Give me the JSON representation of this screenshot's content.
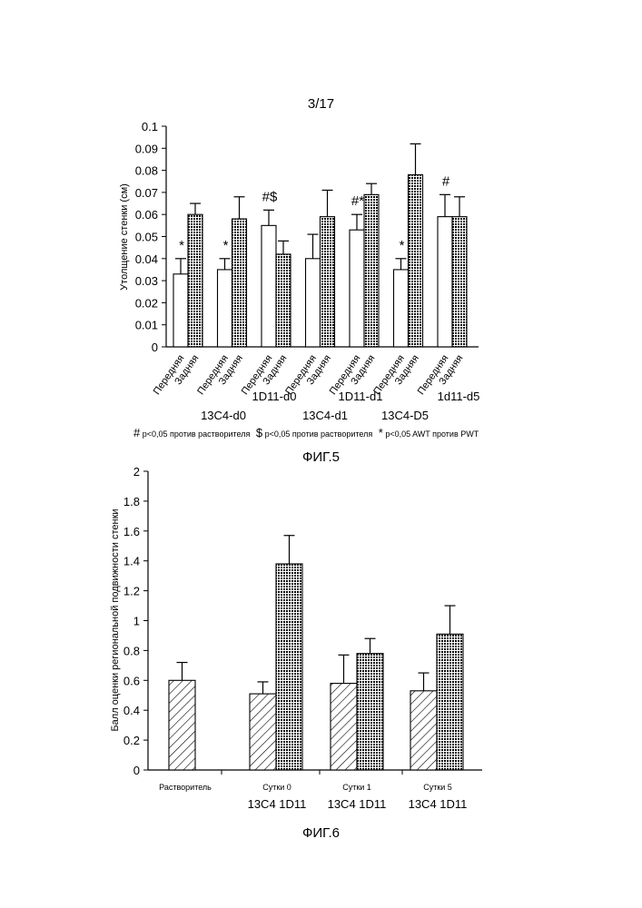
{
  "page_number": "3/17",
  "chart_data": [
    {
      "type": "bar",
      "caption": "ФИГ.5",
      "ylabel": "Утолщение стенки (см)",
      "ylim": [
        0,
        0.1
      ],
      "yticks": [
        "0",
        "0.01",
        "0.02",
        "0.03",
        "0.04",
        "0.05",
        "0.06",
        "0.07",
        "0.08",
        "0.09",
        "0.1"
      ],
      "bar_labels": [
        "Передняя",
        "Задняя"
      ],
      "groups": [
        {
          "label": "",
          "values": [
            0.033,
            0.06
          ],
          "errors": [
            0.007,
            0.005
          ],
          "annotation": "*"
        },
        {
          "label": "13C4-d0",
          "values": [
            0.035,
            0.058
          ],
          "errors": [
            0.005,
            0.01
          ],
          "annotation": "*"
        },
        {
          "label": "1D11-d0",
          "values": [
            0.055,
            0.042
          ],
          "errors": [
            0.007,
            0.006
          ],
          "annotation": "#$"
        },
        {
          "label": "13C4-d1",
          "values": [
            0.04,
            0.059
          ],
          "errors": [
            0.011,
            0.012
          ],
          "annotation": ""
        },
        {
          "label": "1D11-d1",
          "values": [
            0.053,
            0.069
          ],
          "errors": [
            0.007,
            0.005
          ],
          "annotation": "#*"
        },
        {
          "label": "13C4-D5",
          "values": [
            0.035,
            0.078
          ],
          "errors": [
            0.005,
            0.014
          ],
          "annotation": "*"
        },
        {
          "label": "1d11-d5",
          "values": [
            0.059,
            0.059
          ],
          "errors": [
            0.01,
            0.009
          ],
          "annotation": "#"
        }
      ],
      "legend": [
        {
          "symbol": "#",
          "text": "p<0,05 против растворителя"
        },
        {
          "symbol": "$",
          "text": "p<0,05 против растворителя"
        },
        {
          "symbol": "*",
          "text": "p<0,05 AWT против PWT"
        }
      ]
    },
    {
      "type": "bar",
      "caption": "ФИГ.6",
      "ylabel": "Балл оценки региональной подвижности стенки",
      "ylim": [
        0,
        2
      ],
      "yticks": [
        "0",
        "0.2",
        "0.4",
        "0.6",
        "0.8",
        "1",
        "1.2",
        "1.4",
        "1.6",
        "1.8",
        "2"
      ],
      "groups": [
        {
          "label": "Растворитель",
          "sublabel": "",
          "values": [
            0.6
          ],
          "errors": [
            0.12
          ]
        },
        {
          "label": "Сутки 0",
          "sublabel": "13C4 1D11",
          "values": [
            0.51,
            1.38
          ],
          "errors": [
            0.08,
            0.19
          ]
        },
        {
          "label": "Сутки 1",
          "sublabel": "13C4 1D11",
          "values": [
            0.58,
            0.78
          ],
          "errors": [
            0.19,
            0.1
          ]
        },
        {
          "label": "Сутки 5",
          "sublabel": "13C4 1D11",
          "values": [
            0.53,
            0.91
          ],
          "errors": [
            0.12,
            0.19
          ]
        }
      ]
    }
  ]
}
